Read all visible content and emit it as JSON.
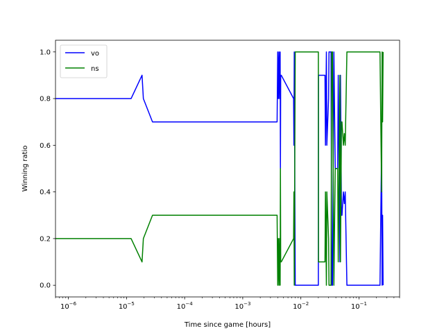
{
  "chart_data": {
    "type": "line",
    "title": "",
    "xlabel": "Time since game [hours]",
    "ylabel": "Winning ratio",
    "xscale": "log",
    "xlim": [
      6e-07,
      0.5
    ],
    "ylim": [
      -0.05,
      1.05
    ],
    "x_ticks": [
      {
        "value": 1e-06,
        "base": "10",
        "exp": "−6"
      },
      {
        "value": 1e-05,
        "base": "10",
        "exp": "−5"
      },
      {
        "value": 0.0001,
        "base": "10",
        "exp": "−4"
      },
      {
        "value": 0.001,
        "base": "10",
        "exp": "−3"
      },
      {
        "value": 0.01,
        "base": "10",
        "exp": "−2"
      },
      {
        "value": 0.1,
        "base": "10",
        "exp": "−1"
      }
    ],
    "y_ticks": [
      {
        "value": 0.0,
        "label": "0.0"
      },
      {
        "value": 0.2,
        "label": "0.2"
      },
      {
        "value": 0.4,
        "label": "0.4"
      },
      {
        "value": 0.6,
        "label": "0.6"
      },
      {
        "value": 0.8,
        "label": "0.8"
      },
      {
        "value": 1.0,
        "label": "1.0"
      }
    ],
    "grid": false,
    "legend": "top-left",
    "series": [
      {
        "name": "vo",
        "color": "#0000ff",
        "x": [
          5e-07,
          1.2e-05,
          1.85e-05,
          1.95e-05,
          2.8e-05,
          0.0039,
          0.004,
          0.0041,
          0.0042,
          0.0043,
          0.0044,
          0.00445,
          0.0045,
          0.0046,
          0.0075,
          0.0076,
          0.0077,
          0.008,
          0.0081,
          0.02,
          0.0201,
          0.026,
          0.0265,
          0.0275,
          0.028,
          0.03,
          0.0305,
          0.033,
          0.034,
          0.035,
          0.037,
          0.039,
          0.04,
          0.043,
          0.044,
          0.047,
          0.048,
          0.05,
          0.051,
          0.0525,
          0.054,
          0.056,
          0.058,
          0.062,
          0.066,
          0.068,
          0.069,
          0.22,
          0.23,
          0.245,
          0.25,
          0.255,
          0.26
        ],
        "y": [
          0.8,
          0.8,
          0.9,
          0.8,
          0.7,
          0.7,
          1.0,
          0.8,
          1.0,
          0.8,
          1.0,
          0.5,
          0.9,
          0.9,
          0.8,
          0.6,
          1.0,
          0.0,
          0.0,
          0.0,
          0.9,
          0.9,
          0.6,
          1.0,
          0.6,
          0.8,
          1.0,
          1.0,
          0.0,
          0.0,
          1.0,
          0.5,
          0.5,
          0.5,
          0.9,
          0.1,
          0.9,
          0.3,
          0.3,
          0.35,
          0.4,
          0.35,
          0.4,
          0.0,
          0.0,
          0.0,
          0.0,
          0.0,
          0.0,
          0.6,
          0.0,
          0.3,
          0.0
        ]
      },
      {
        "name": "ns",
        "color": "#008000",
        "x": [
          5e-07,
          1.2e-05,
          1.85e-05,
          1.95e-05,
          2.8e-05,
          0.0039,
          0.004,
          0.0041,
          0.0042,
          0.0043,
          0.0044,
          0.00445,
          0.0045,
          0.0046,
          0.0075,
          0.0076,
          0.0077,
          0.008,
          0.0081,
          0.02,
          0.0201,
          0.026,
          0.0265,
          0.0275,
          0.028,
          0.03,
          0.0305,
          0.033,
          0.034,
          0.035,
          0.037,
          0.039,
          0.04,
          0.043,
          0.044,
          0.047,
          0.048,
          0.05,
          0.051,
          0.0525,
          0.054,
          0.056,
          0.058,
          0.062,
          0.066,
          0.068,
          0.069,
          0.22,
          0.23,
          0.245,
          0.25,
          0.255,
          0.26
        ],
        "y": [
          0.2,
          0.2,
          0.1,
          0.2,
          0.3,
          0.3,
          0.0,
          0.2,
          0.0,
          0.2,
          0.0,
          0.5,
          0.1,
          0.1,
          0.2,
          0.4,
          0.0,
          1.0,
          1.0,
          1.0,
          0.1,
          0.1,
          0.4,
          0.0,
          0.4,
          0.2,
          0.0,
          0.0,
          1.0,
          1.0,
          0.0,
          0.5,
          0.5,
          0.5,
          0.1,
          0.9,
          0.1,
          0.7,
          0.7,
          0.65,
          0.6,
          0.65,
          0.6,
          1.0,
          1.0,
          1.0,
          1.0,
          1.0,
          1.0,
          0.4,
          1.0,
          0.7,
          1.0
        ]
      }
    ]
  }
}
